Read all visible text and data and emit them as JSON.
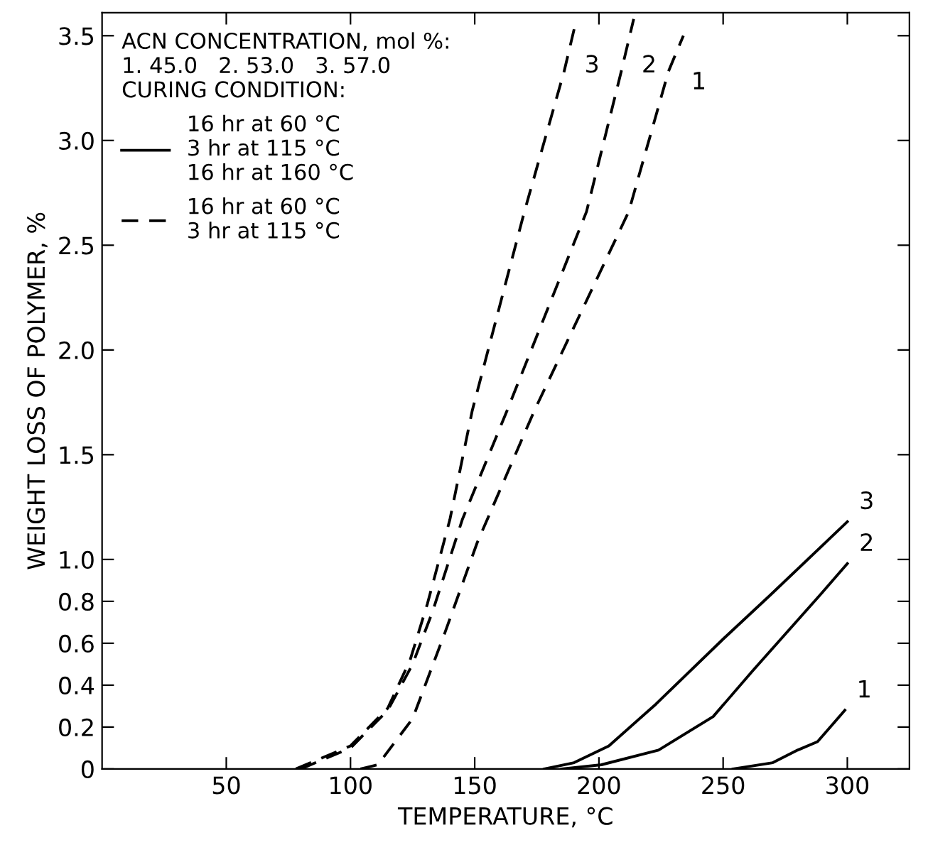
{
  "chart_data": {
    "type": "line",
    "xlabel": "TEMPERATURE, °C",
    "ylabel": "WEIGHT LOSS OF POLYMER, %",
    "legend_title": "ACN CONCENTRATION, mol %:\n1. 45.0   2. 53.0   3. 57.0\nCURING CONDITION:",
    "series": [
      {
        "name": "16 hr at 60 °C\n3 hr at 115 °C\n16 hr at 160 °C",
        "color": "#000000",
        "line_style": "solid",
        "x": [
          254,
          270,
          280,
          288,
          299
        ],
        "values": [
          0,
          0.03,
          0.09,
          0.13,
          0.28
        ]
      },
      {
        "color": "#000000",
        "line_style": "solid",
        "x": [
          185,
          201,
          224,
          246,
          262,
          289,
          300
        ],
        "values": [
          0,
          0.02,
          0.09,
          0.25,
          0.47,
          0.83,
          0.98
        ]
      },
      {
        "color": "#000000",
        "line_style": "solid",
        "x": [
          178,
          190,
          204,
          223,
          250,
          269,
          300
        ],
        "values": [
          0,
          0.03,
          0.11,
          0.31,
          0.62,
          0.83,
          1.18
        ]
      },
      {
        "name": "16 hr at 60 °C\n3 hr at 115 °C",
        "color": "#000000",
        "line_style": "dashed",
        "x": [
          104,
          111,
          125,
          138,
          151,
          174,
          212,
          228,
          234
        ],
        "values": [
          0,
          0.02,
          0.24,
          0.65,
          1.08,
          1.71,
          2.66,
          3.33,
          3.5
        ]
      },
      {
        "color": "#000000",
        "line_style": "dashed",
        "x": [
          80,
          100,
          115,
          125,
          133,
          145,
          163,
          195,
          209,
          214
        ],
        "values": [
          0,
          0.1,
          0.28,
          0.5,
          0.75,
          1.19,
          1.71,
          2.66,
          3.33,
          3.58
        ]
      },
      {
        "color": "#000000",
        "line_style": "dashed",
        "x": [
          78,
          100,
          115,
          124,
          131,
          140,
          149,
          170,
          186,
          191
        ],
        "values": [
          0,
          0.11,
          0.29,
          0.52,
          0.79,
          1.19,
          1.71,
          2.66,
          3.33,
          3.58
        ]
      }
    ],
    "annotations": [
      {
        "text": "1",
        "x": 299,
        "y": 0.28
      },
      {
        "text": "2",
        "x": 300,
        "y": 0.98
      },
      {
        "text": "3",
        "x": 300,
        "y": 1.18
      },
      {
        "text": "3",
        "x": 191,
        "y": 3.58
      },
      {
        "text": "2",
        "x": 214,
        "y": 3.58
      },
      {
        "text": "1",
        "x": 234,
        "y": 3.5
      }
    ],
    "xlim": [
      0,
      325
    ],
    "ylim": [
      0,
      3.61
    ],
    "xticks": [
      50,
      100,
      150,
      200,
      250,
      300
    ],
    "yticks": [
      0,
      0.2,
      0.4,
      0.6,
      0.8,
      {
        "value": 1,
        "label": "1.0"
      },
      1.5,
      {
        "value": 2,
        "label": "2.0"
      },
      2.5,
      {
        "value": 3,
        "label": "3.0"
      },
      3.5
    ],
    "grid": false,
    "legend": "top left",
    "marker": "none"
  }
}
